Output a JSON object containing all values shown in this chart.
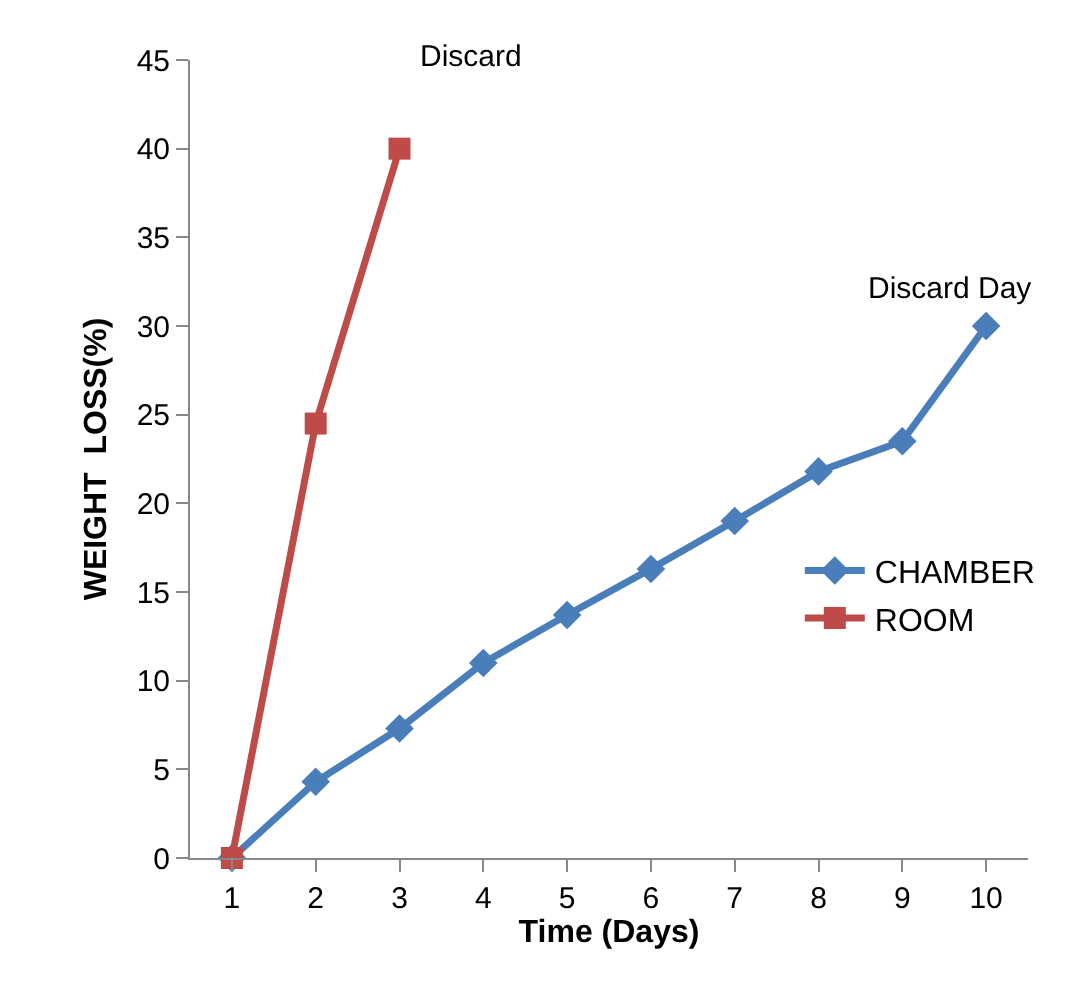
{
  "chart_data": {
    "type": "line",
    "xlabel": "Time (Days)",
    "ylabel": "WEIGHT  LOSS(%)",
    "categories": [
      "1",
      "2",
      "3",
      "4",
      "5",
      "6",
      "7",
      "8",
      "9",
      "10"
    ],
    "series": [
      {
        "name": "CHAMBER",
        "color": "#4a7ebb",
        "marker": "diamond",
        "values": [
          0,
          4.3,
          7.3,
          11,
          13.7,
          16.3,
          19,
          21.8,
          23.5,
          30
        ]
      },
      {
        "name": "ROOM",
        "color": "#be4b48",
        "marker": "square",
        "values": [
          0,
          24.5,
          40,
          null,
          null,
          null,
          null,
          null,
          null,
          null
        ]
      }
    ],
    "ylim": [
      0,
      45
    ],
    "yticks": [
      0,
      5,
      10,
      15,
      20,
      25,
      30,
      35,
      40,
      45
    ],
    "grid": false,
    "legend": "right",
    "line_style": "solid",
    "annotations": [
      "Discard",
      "Discard Day"
    ]
  }
}
